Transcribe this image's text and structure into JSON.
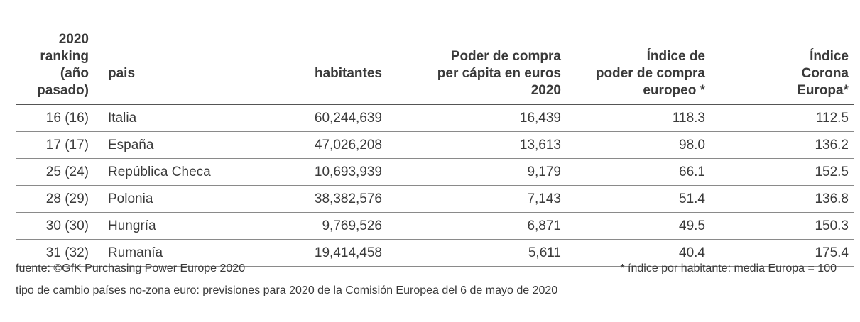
{
  "table": {
    "headers": {
      "rank": [
        "2020",
        "ranking",
        "(año",
        "pasado)"
      ],
      "pais": "pais",
      "habitantes": "habitantes",
      "poder": [
        "Poder de compra",
        "per cápita en euros",
        "2020"
      ],
      "indice": [
        "Índice de",
        "poder de compra",
        "europeo *"
      ],
      "corona": [
        "Índice",
        "Corona",
        "Europa*"
      ]
    },
    "rows": [
      {
        "rank": "16 (16)",
        "pais": "Italia",
        "habitantes": "60,244,639",
        "poder": "16,439",
        "indice": "118.3",
        "corona": "112.5"
      },
      {
        "rank": "17 (17)",
        "pais": "España",
        "habitantes": "47,026,208",
        "poder": "13,613",
        "indice": "98.0",
        "corona": "136.2"
      },
      {
        "rank": "25 (24)",
        "pais": "República Checa",
        "habitantes": "10,693,939",
        "poder": "9,179",
        "indice": "66.1",
        "corona": "152.5"
      },
      {
        "rank": "28 (29)",
        "pais": "Polonia",
        "habitantes": "38,382,576",
        "poder": "7,143",
        "indice": "51.4",
        "corona": "136.8"
      },
      {
        "rank": "30 (30)",
        "pais": "Hungría",
        "habitantes": "9,769,526",
        "poder": "6,871",
        "indice": "49.5",
        "corona": "150.3"
      },
      {
        "rank": "31 (32)",
        "pais": "Rumanía",
        "habitantes": "19,414,458",
        "poder": "5,611",
        "indice": "40.4",
        "corona": "175.4"
      }
    ]
  },
  "footer": {
    "source": "fuente: ©GfK Purchasing Power Europe 2020",
    "note_index": "* índice por habitante: media Europa = 100",
    "note_exchange": "tipo de cambio países no-zona euro: previsiones para 2020 de la Comisión Europea del 6 de mayo de 2020"
  }
}
